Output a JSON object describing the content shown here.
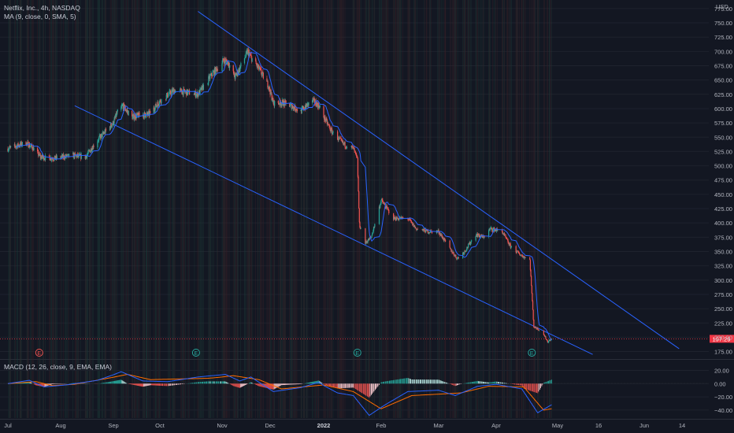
{
  "legend": {
    "main": "Netflix, Inc., 4h, NASDAQ",
    "ma": "MA (9, close, 0, SMA, 5)",
    "macd": "MACD (12, 26, close, 9, EMA, EMA)"
  },
  "colors": {
    "background": "#131722",
    "up": "#26a69a",
    "down": "#ef5350",
    "ma_line": "#2962ff",
    "trendline": "#2962ff",
    "macd_line": "#2962ff",
    "signal_line": "#ff6d00",
    "price_label": "#f23645"
  },
  "chart_data": [
    {
      "type": "candlestick",
      "title": "Netflix, Inc., 4h, NASDAQ",
      "currency": "USD",
      "x_ticks": [
        "Jul",
        "Aug",
        "Sep",
        "Oct",
        "Nov",
        "Dec",
        "2022",
        "Feb",
        "Mar",
        "Apr",
        "May",
        "16",
        "Jun",
        "14"
      ],
      "y_ticks": [
        175,
        200,
        225,
        250,
        275,
        300,
        325,
        350,
        375,
        400,
        425,
        450,
        475,
        500,
        525,
        550,
        575,
        600,
        625,
        650,
        675,
        700,
        725,
        750,
        775
      ],
      "ylim": [
        162,
        790
      ],
      "last_price_label": "197.29",
      "series_keypoints": [
        {
          "date": "2021-07-01",
          "close": 530
        },
        {
          "date": "2021-07-12",
          "close": 540
        },
        {
          "date": "2021-07-16",
          "close": 532
        },
        {
          "date": "2021-07-21",
          "close": 515
        },
        {
          "date": "2021-07-29",
          "close": 513
        },
        {
          "date": "2021-08-09",
          "close": 518
        },
        {
          "date": "2021-08-16",
          "close": 515
        },
        {
          "date": "2021-08-23",
          "close": 545
        },
        {
          "date": "2021-09-01",
          "close": 575
        },
        {
          "date": "2021-09-03",
          "close": 590
        },
        {
          "date": "2021-09-07",
          "close": 605
        },
        {
          "date": "2021-09-13",
          "close": 585
        },
        {
          "date": "2021-09-17",
          "close": 588
        },
        {
          "date": "2021-09-24",
          "close": 590
        },
        {
          "date": "2021-10-01",
          "close": 613
        },
        {
          "date": "2021-10-08",
          "close": 632
        },
        {
          "date": "2021-10-15",
          "close": 628
        },
        {
          "date": "2021-10-20",
          "close": 625
        },
        {
          "date": "2021-10-27",
          "close": 660
        },
        {
          "date": "2021-11-02",
          "close": 685
        },
        {
          "date": "2021-11-05",
          "close": 680
        },
        {
          "date": "2021-11-09",
          "close": 655
        },
        {
          "date": "2021-11-12",
          "close": 670
        },
        {
          "date": "2021-11-17",
          "close": 700
        },
        {
          "date": "2021-11-19",
          "close": 690
        },
        {
          "date": "2021-11-24",
          "close": 670
        },
        {
          "date": "2021-11-30",
          "close": 640
        },
        {
          "date": "2021-12-03",
          "close": 610
        },
        {
          "date": "2021-12-09",
          "close": 610
        },
        {
          "date": "2021-12-14",
          "close": 605
        },
        {
          "date": "2021-12-20",
          "close": 595
        },
        {
          "date": "2021-12-27",
          "close": 615
        },
        {
          "date": "2021-12-31",
          "close": 605
        },
        {
          "date": "2022-01-07",
          "close": 560
        },
        {
          "date": "2022-01-13",
          "close": 538
        },
        {
          "date": "2022-01-18",
          "close": 530
        },
        {
          "date": "2022-01-20",
          "close": 510
        },
        {
          "date": "2022-01-21",
          "close": 398
        },
        {
          "date": "2022-01-24",
          "close": 365
        },
        {
          "date": "2022-01-27",
          "close": 375
        },
        {
          "date": "2022-02-01",
          "close": 440
        },
        {
          "date": "2022-02-07",
          "close": 408
        },
        {
          "date": "2022-02-14",
          "close": 408
        },
        {
          "date": "2022-02-18",
          "close": 390
        },
        {
          "date": "2022-02-24",
          "close": 385
        },
        {
          "date": "2022-03-01",
          "close": 385
        },
        {
          "date": "2022-03-07",
          "close": 355
        },
        {
          "date": "2022-03-11",
          "close": 338
        },
        {
          "date": "2022-03-15",
          "close": 350
        },
        {
          "date": "2022-03-21",
          "close": 380
        },
        {
          "date": "2022-03-25",
          "close": 375
        },
        {
          "date": "2022-03-29",
          "close": 390
        },
        {
          "date": "2022-04-04",
          "close": 385
        },
        {
          "date": "2022-04-08",
          "close": 360
        },
        {
          "date": "2022-04-13",
          "close": 345
        },
        {
          "date": "2022-04-18",
          "close": 335
        },
        {
          "date": "2022-04-20",
          "close": 218
        },
        {
          "date": "2022-04-22",
          "close": 215
        },
        {
          "date": "2022-04-25",
          "close": 205
        },
        {
          "date": "2022-04-27",
          "close": 192
        },
        {
          "date": "2022-04-29",
          "close": 197.29
        }
      ],
      "trendlines": [
        {
          "from": {
            "date": "2021-10-20",
            "value": 770
          },
          "to": {
            "date": "2022-06-13",
            "value": 180
          }
        },
        {
          "from": {
            "date": "2021-08-10",
            "value": 605
          },
          "to": {
            "date": "2022-05-14",
            "value": 170
          }
        }
      ],
      "earnings_markers": [
        {
          "date": "2021-07-20",
          "label": "E",
          "color": "#ef5350"
        },
        {
          "date": "2021-10-19",
          "label": "E",
          "color": "#26a69a"
        },
        {
          "date": "2022-01-20",
          "label": "E",
          "color": "#26a69a"
        },
        {
          "date": "2022-04-19",
          "label": "E",
          "color": "#26a69a"
        }
      ]
    },
    {
      "type": "macd",
      "title": "MACD (12, 26, close, 9, EMA, EMA)",
      "y_ticks": [
        20,
        0,
        -20,
        -40
      ],
      "y_tick_labels": [
        "20.00",
        "0.00",
        "−20.00",
        "−40.00"
      ],
      "ylim": [
        -52,
        36
      ],
      "macd_keypoints": [
        {
          "date": "2021-07-01",
          "value": 0
        },
        {
          "date": "2021-07-14",
          "value": 5
        },
        {
          "date": "2021-07-23",
          "value": -5
        },
        {
          "date": "2021-08-05",
          "value": -2
        },
        {
          "date": "2021-08-23",
          "value": 5
        },
        {
          "date": "2021-09-06",
          "value": 18
        },
        {
          "date": "2021-09-20",
          "value": 4
        },
        {
          "date": "2021-10-05",
          "value": 3
        },
        {
          "date": "2021-10-20",
          "value": 10
        },
        {
          "date": "2021-11-03",
          "value": 14
        },
        {
          "date": "2021-11-12",
          "value": 4
        },
        {
          "date": "2021-11-19",
          "value": 10
        },
        {
          "date": "2021-12-03",
          "value": -12
        },
        {
          "date": "2021-12-20",
          "value": -6
        },
        {
          "date": "2021-12-31",
          "value": 2
        },
        {
          "date": "2022-01-10",
          "value": -14
        },
        {
          "date": "2022-01-18",
          "value": -18
        },
        {
          "date": "2022-01-26",
          "value": -48
        },
        {
          "date": "2022-02-03",
          "value": -32
        },
        {
          "date": "2022-02-14",
          "value": -12
        },
        {
          "date": "2022-03-01",
          "value": -10
        },
        {
          "date": "2022-03-10",
          "value": -18
        },
        {
          "date": "2022-03-22",
          "value": -4
        },
        {
          "date": "2022-04-01",
          "value": -1
        },
        {
          "date": "2022-04-14",
          "value": -8
        },
        {
          "date": "2022-04-22",
          "value": -44
        },
        {
          "date": "2022-04-29",
          "value": -32
        }
      ],
      "signal_keypoints": [
        {
          "date": "2021-07-01",
          "value": 0
        },
        {
          "date": "2021-07-18",
          "value": 3
        },
        {
          "date": "2021-07-28",
          "value": -3
        },
        {
          "date": "2021-08-10",
          "value": -1
        },
        {
          "date": "2021-09-10",
          "value": 14
        },
        {
          "date": "2021-09-25",
          "value": 6
        },
        {
          "date": "2021-10-25",
          "value": 8
        },
        {
          "date": "2021-11-08",
          "value": 12
        },
        {
          "date": "2021-11-24",
          "value": 6
        },
        {
          "date": "2021-12-08",
          "value": -8
        },
        {
          "date": "2022-01-03",
          "value": -2
        },
        {
          "date": "2022-01-18",
          "value": -12
        },
        {
          "date": "2022-02-01",
          "value": -38
        },
        {
          "date": "2022-02-16",
          "value": -18
        },
        {
          "date": "2022-03-13",
          "value": -14
        },
        {
          "date": "2022-03-28",
          "value": -4
        },
        {
          "date": "2022-04-15",
          "value": -5
        },
        {
          "date": "2022-04-25",
          "value": -40
        },
        {
          "date": "2022-04-29",
          "value": -38
        }
      ]
    }
  ]
}
